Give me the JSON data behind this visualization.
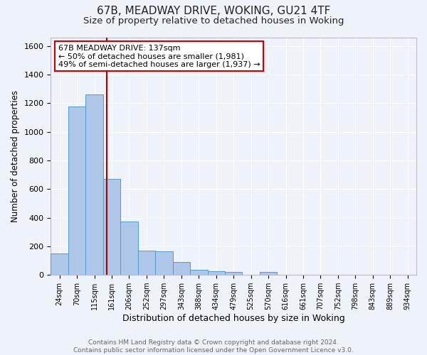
{
  "title": "67B, MEADWAY DRIVE, WOKING, GU21 4TF",
  "subtitle": "Size of property relative to detached houses in Woking",
  "xlabel": "Distribution of detached houses by size in Woking",
  "ylabel": "Number of detached properties",
  "bin_labels": [
    "24sqm",
    "70sqm",
    "115sqm",
    "161sqm",
    "206sqm",
    "252sqm",
    "297sqm",
    "343sqm",
    "388sqm",
    "434sqm",
    "479sqm",
    "525sqm",
    "570sqm",
    "616sqm",
    "661sqm",
    "707sqm",
    "752sqm",
    "798sqm",
    "843sqm",
    "889sqm",
    "934sqm"
  ],
  "bar_heights": [
    150,
    1175,
    1260,
    670,
    375,
    170,
    165,
    90,
    35,
    25,
    20,
    0,
    20,
    0,
    0,
    0,
    0,
    0,
    0,
    0,
    0
  ],
  "bar_color": "#AEC6E8",
  "bar_edge_color": "#5599CC",
  "property_line_x": 2.72,
  "annotation_line0": "67B MEADWAY DRIVE: 137sqm",
  "annotation_line1": "← 50% of detached houses are smaller (1,981)",
  "annotation_line2": "49% of semi-detached houses are larger (1,937) →",
  "annotation_box_color": "#ffffff",
  "annotation_box_edge_color": "#cc0000",
  "red_line_color": "#aa0000",
  "ylim": [
    0,
    1660
  ],
  "yticks": [
    0,
    200,
    400,
    600,
    800,
    1000,
    1200,
    1400,
    1600
  ],
  "footer_line1": "Contains HM Land Registry data © Crown copyright and database right 2024.",
  "footer_line2": "Contains public sector information licensed under the Open Government Licence v3.0.",
  "bg_color": "#eef2f9",
  "grid_color": "#ffffff",
  "title_fontsize": 11,
  "subtitle_fontsize": 9.5
}
